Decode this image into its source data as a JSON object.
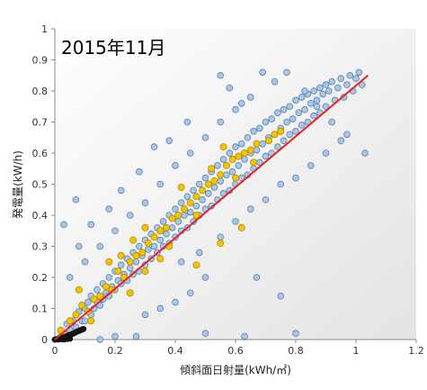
{
  "chart_data": {
    "type": "scatter",
    "title": "2015年11月",
    "xlabel": "傾斜面日射量(kWh/㎡)",
    "ylabel": "発電量(kW/h)",
    "xlim": [
      0,
      1.2
    ],
    "ylim": [
      0,
      1
    ],
    "xticks": [
      "0",
      "0.2",
      "0.4",
      "0.6",
      "0.8",
      "1",
      "1.2"
    ],
    "yticks": [
      "0",
      "0.1",
      "0.2",
      "0.3",
      "0.4",
      "0.5",
      "0.6",
      "0.7",
      "0.8",
      "0.9",
      "1"
    ],
    "grid": false,
    "legend": "none",
    "colors": {
      "main_points": "#a9c7ea",
      "main_points_outline": "#5b7fa6",
      "highlight_points": "#f5c400",
      "highlight_points_outline": "#b08a00",
      "trend_line": "#e8231f",
      "night_points": "#111111"
    },
    "series": [
      {
        "marker": "circle-light-blue",
        "values": [
          [
            0.02,
            0.01
          ],
          [
            0.03,
            0.02
          ],
          [
            0.04,
            0.05
          ],
          [
            0.05,
            0.03
          ],
          [
            0.06,
            0.06
          ],
          [
            0.07,
            0.04
          ],
          [
            0.08,
            0.09
          ],
          [
            0.09,
            0.06
          ],
          [
            0.1,
            0.1
          ],
          [
            0.1,
            0.06
          ],
          [
            0.11,
            0.12
          ],
          [
            0.12,
            0.08
          ],
          [
            0.12,
            0.14
          ],
          [
            0.13,
            0.1
          ],
          [
            0.14,
            0.16
          ],
          [
            0.14,
            0.12
          ],
          [
            0.15,
            0.11
          ],
          [
            0.16,
            0.18
          ],
          [
            0.16,
            0.13
          ],
          [
            0.17,
            0.15
          ],
          [
            0.18,
            0.2
          ],
          [
            0.18,
            0.14
          ],
          [
            0.19,
            0.17
          ],
          [
            0.2,
            0.22
          ],
          [
            0.2,
            0.16
          ],
          [
            0.21,
            0.19
          ],
          [
            0.22,
            0.24
          ],
          [
            0.22,
            0.18
          ],
          [
            0.23,
            0.21
          ],
          [
            0.24,
            0.26
          ],
          [
            0.24,
            0.19
          ],
          [
            0.25,
            0.23
          ],
          [
            0.26,
            0.28
          ],
          [
            0.26,
            0.21
          ],
          [
            0.27,
            0.25
          ],
          [
            0.28,
            0.3
          ],
          [
            0.28,
            0.22
          ],
          [
            0.29,
            0.27
          ],
          [
            0.3,
            0.32
          ],
          [
            0.3,
            0.24
          ],
          [
            0.31,
            0.29
          ],
          [
            0.32,
            0.34
          ],
          [
            0.32,
            0.26
          ],
          [
            0.33,
            0.3
          ],
          [
            0.34,
            0.36
          ],
          [
            0.34,
            0.28
          ],
          [
            0.35,
            0.32
          ],
          [
            0.36,
            0.38
          ],
          [
            0.36,
            0.3
          ],
          [
            0.37,
            0.34
          ],
          [
            0.38,
            0.4
          ],
          [
            0.38,
            0.31
          ],
          [
            0.39,
            0.36
          ],
          [
            0.4,
            0.42
          ],
          [
            0.4,
            0.33
          ],
          [
            0.41,
            0.38
          ],
          [
            0.42,
            0.44
          ],
          [
            0.42,
            0.35
          ],
          [
            0.43,
            0.4
          ],
          [
            0.44,
            0.46
          ],
          [
            0.44,
            0.36
          ],
          [
            0.45,
            0.41
          ],
          [
            0.46,
            0.48
          ],
          [
            0.46,
            0.38
          ],
          [
            0.47,
            0.43
          ],
          [
            0.48,
            0.5
          ],
          [
            0.48,
            0.4
          ],
          [
            0.49,
            0.45
          ],
          [
            0.5,
            0.52
          ],
          [
            0.5,
            0.42
          ],
          [
            0.51,
            0.47
          ],
          [
            0.52,
            0.54
          ],
          [
            0.52,
            0.43
          ],
          [
            0.53,
            0.49
          ],
          [
            0.54,
            0.56
          ],
          [
            0.54,
            0.45
          ],
          [
            0.55,
            0.51
          ],
          [
            0.56,
            0.58
          ],
          [
            0.56,
            0.47
          ],
          [
            0.57,
            0.53
          ],
          [
            0.58,
            0.6
          ],
          [
            0.58,
            0.48
          ],
          [
            0.59,
            0.54
          ],
          [
            0.6,
            0.62
          ],
          [
            0.6,
            0.5
          ],
          [
            0.61,
            0.56
          ],
          [
            0.62,
            0.63
          ],
          [
            0.62,
            0.52
          ],
          [
            0.63,
            0.58
          ],
          [
            0.64,
            0.65
          ],
          [
            0.64,
            0.53
          ],
          [
            0.65,
            0.6
          ],
          [
            0.66,
            0.67
          ],
          [
            0.66,
            0.55
          ],
          [
            0.67,
            0.61
          ],
          [
            0.68,
            0.68
          ],
          [
            0.68,
            0.57
          ],
          [
            0.69,
            0.63
          ],
          [
            0.7,
            0.7
          ],
          [
            0.7,
            0.59
          ],
          [
            0.71,
            0.65
          ],
          [
            0.72,
            0.71
          ],
          [
            0.72,
            0.6
          ],
          [
            0.73,
            0.66
          ],
          [
            0.74,
            0.73
          ],
          [
            0.74,
            0.62
          ],
          [
            0.75,
            0.68
          ],
          [
            0.76,
            0.74
          ],
          [
            0.76,
            0.64
          ],
          [
            0.77,
            0.7
          ],
          [
            0.78,
            0.75
          ],
          [
            0.78,
            0.66
          ],
          [
            0.79,
            0.71
          ],
          [
            0.8,
            0.77
          ],
          [
            0.8,
            0.67
          ],
          [
            0.81,
            0.73
          ],
          [
            0.82,
            0.78
          ],
          [
            0.82,
            0.69
          ],
          [
            0.83,
            0.74
          ],
          [
            0.84,
            0.79
          ],
          [
            0.84,
            0.7
          ],
          [
            0.85,
            0.76
          ],
          [
            0.86,
            0.8
          ],
          [
            0.86,
            0.72
          ],
          [
            0.87,
            0.77
          ],
          [
            0.88,
            0.81
          ],
          [
            0.88,
            0.73
          ],
          [
            0.89,
            0.79
          ],
          [
            0.9,
            0.82
          ],
          [
            0.9,
            0.75
          ],
          [
            0.91,
            0.8
          ],
          [
            0.92,
            0.83
          ],
          [
            0.93,
            0.77
          ],
          [
            0.94,
            0.81
          ],
          [
            0.95,
            0.84
          ],
          [
            0.96,
            0.78
          ],
          [
            0.97,
            0.82
          ],
          [
            0.98,
            0.85
          ],
          [
            0.99,
            0.8
          ],
          [
            1.0,
            0.84
          ],
          [
            1.01,
            0.86
          ],
          [
            1.02,
            0.82
          ],
          [
            0.3,
            0.44
          ],
          [
            0.35,
            0.5
          ],
          [
            0.4,
            0.56
          ],
          [
            0.45,
            0.6
          ],
          [
            0.5,
            0.65
          ],
          [
            0.55,
            0.7
          ],
          [
            0.6,
            0.74
          ],
          [
            0.65,
            0.78
          ],
          [
            0.25,
            0.4
          ],
          [
            0.2,
            0.35
          ],
          [
            0.15,
            0.3
          ],
          [
            0.1,
            0.25
          ],
          [
            0.42,
            0.25
          ],
          [
            0.48,
            0.28
          ],
          [
            0.55,
            0.33
          ],
          [
            0.6,
            0.38
          ],
          [
            0.65,
            0.42
          ],
          [
            0.7,
            0.45
          ],
          [
            0.75,
            0.5
          ],
          [
            0.8,
            0.52
          ],
          [
            0.85,
            0.56
          ],
          [
            0.9,
            0.6
          ],
          [
            0.95,
            0.64
          ],
          [
            0.5,
            0.2
          ],
          [
            0.45,
            0.15
          ],
          [
            0.4,
            0.12
          ],
          [
            0.35,
            0.1
          ],
          [
            0.3,
            0.08
          ],
          [
            0.03,
            0.37
          ],
          [
            0.07,
            0.45
          ],
          [
            0.05,
            0.2
          ],
          [
            0.08,
            0.3
          ],
          [
            0.12,
            0.37
          ],
          [
            0.58,
            0.81
          ],
          [
            0.69,
            0.86
          ],
          [
            0.73,
            0.83
          ],
          [
            0.77,
            0.86
          ],
          [
            0.83,
            0.8
          ],
          [
            0.87,
            0.75
          ],
          [
            0.92,
            0.7
          ],
          [
            0.97,
            0.66
          ],
          [
            1.03,
            0.6
          ],
          [
            0.67,
            0.2
          ],
          [
            0.75,
            0.14
          ],
          [
            0.63,
            0.01
          ],
          [
            0.5,
            0.02
          ],
          [
            0.8,
            0.02
          ],
          [
            0.27,
            0.01
          ],
          [
            0.2,
            0.01
          ],
          [
            0.15,
            0.0
          ],
          [
            0.55,
            0.85
          ],
          [
            0.62,
            0.76
          ],
          [
            0.44,
            0.7
          ],
          [
            0.38,
            0.64
          ],
          [
            0.33,
            0.62
          ],
          [
            0.28,
            0.54
          ],
          [
            0.22,
            0.48
          ],
          [
            0.18,
            0.42
          ]
        ]
      },
      {
        "marker": "circle-yellow",
        "values": [
          [
            0.02,
            0.03
          ],
          [
            0.05,
            0.06
          ],
          [
            0.07,
            0.08
          ],
          [
            0.09,
            0.11
          ],
          [
            0.11,
            0.09
          ],
          [
            0.13,
            0.13
          ],
          [
            0.15,
            0.14
          ],
          [
            0.17,
            0.17
          ],
          [
            0.19,
            0.16
          ],
          [
            0.21,
            0.22
          ],
          [
            0.23,
            0.2
          ],
          [
            0.25,
            0.25
          ],
          [
            0.27,
            0.27
          ],
          [
            0.29,
            0.28
          ],
          [
            0.31,
            0.31
          ],
          [
            0.33,
            0.33
          ],
          [
            0.35,
            0.35
          ],
          [
            0.37,
            0.36
          ],
          [
            0.39,
            0.39
          ],
          [
            0.41,
            0.4
          ],
          [
            0.43,
            0.42
          ],
          [
            0.45,
            0.44
          ],
          [
            0.47,
            0.46
          ],
          [
            0.49,
            0.48
          ],
          [
            0.51,
            0.5
          ],
          [
            0.53,
            0.51
          ],
          [
            0.55,
            0.53
          ],
          [
            0.57,
            0.56
          ],
          [
            0.59,
            0.58
          ],
          [
            0.61,
            0.59
          ],
          [
            0.63,
            0.6
          ],
          [
            0.65,
            0.61
          ],
          [
            0.67,
            0.63
          ],
          [
            0.71,
            0.64
          ],
          [
            0.73,
            0.66
          ],
          [
            0.75,
            0.67
          ],
          [
            0.12,
            0.06
          ],
          [
            0.25,
            0.15
          ],
          [
            0.18,
            0.25
          ],
          [
            0.3,
            0.36
          ],
          [
            0.35,
            0.26
          ],
          [
            0.42,
            0.49
          ],
          [
            0.47,
            0.4
          ],
          [
            0.52,
            0.55
          ],
          [
            0.56,
            0.62
          ],
          [
            0.6,
            0.52
          ],
          [
            0.66,
            0.57
          ],
          [
            0.38,
            0.3
          ],
          [
            0.3,
            0.22
          ],
          [
            0.22,
            0.27
          ],
          [
            0.47,
            0.24
          ],
          [
            0.55,
            0.31
          ],
          [
            0.62,
            0.36
          ],
          [
            0.26,
            0.32
          ],
          [
            0.08,
            0.16
          ]
        ]
      },
      {
        "marker": "circle-black",
        "values": [
          [
            0.0,
            0.0
          ],
          [
            0.005,
            0.001
          ],
          [
            0.01,
            0.002
          ],
          [
            0.015,
            0.003
          ],
          [
            0.02,
            0.004
          ],
          [
            0.025,
            0.006
          ],
          [
            0.03,
            0.007
          ],
          [
            0.035,
            0.009
          ],
          [
            0.04,
            0.011
          ],
          [
            0.045,
            0.013
          ],
          [
            0.05,
            0.015
          ],
          [
            0.055,
            0.017
          ],
          [
            0.06,
            0.019
          ],
          [
            0.065,
            0.021
          ],
          [
            0.07,
            0.024
          ],
          [
            0.075,
            0.026
          ],
          [
            0.08,
            0.028
          ],
          [
            0.085,
            0.03
          ],
          [
            0.09,
            0.032
          ],
          [
            0.095,
            0.034
          ],
          [
            0.01,
            0.0
          ],
          [
            0.02,
            0.001
          ],
          [
            0.03,
            0.0
          ],
          [
            0.04,
            0.002
          ],
          [
            0.05,
            0.003
          ]
        ]
      }
    ],
    "trendline": {
      "x": [
        0,
        1.04
      ],
      "y": [
        0,
        0.85
      ]
    }
  }
}
